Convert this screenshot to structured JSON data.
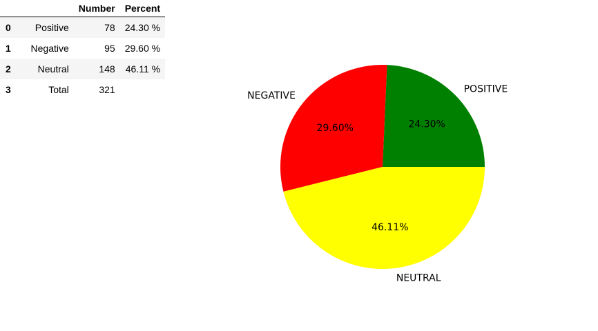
{
  "table": {
    "columns": [
      "",
      "",
      "Number",
      "Percent"
    ],
    "rows": [
      {
        "index": "0",
        "label": "Positive",
        "number": "78",
        "percent": "24.30 %"
      },
      {
        "index": "1",
        "label": "Negative",
        "number": "95",
        "percent": "29.60 %"
      },
      {
        "index": "2",
        "label": "Neutral",
        "number": "148",
        "percent": "46.11 %"
      },
      {
        "index": "3",
        "label": "Total",
        "number": "321",
        "percent": ""
      }
    ]
  },
  "chart_data": {
    "type": "pie",
    "slices": [
      {
        "label": "POSITIVE",
        "value": 78,
        "pct_label": "24.30%",
        "color": "#008000"
      },
      {
        "label": "NEGATIVE",
        "value": 95,
        "pct_label": "29.60%",
        "color": "#ff0000"
      },
      {
        "label": "NEUTRAL",
        "value": 148,
        "pct_label": "46.11%",
        "color": "#ffff00"
      }
    ],
    "start_angle_deg": 0,
    "direction": "counterclockwise"
  }
}
